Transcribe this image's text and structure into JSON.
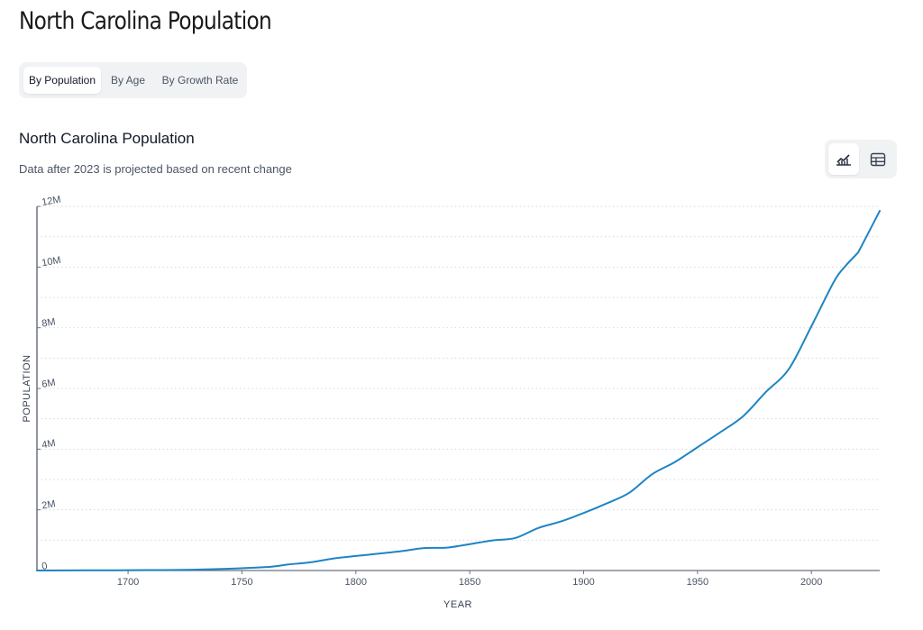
{
  "page": {
    "title": "North Carolina Population"
  },
  "tabs": [
    {
      "label": "By Population",
      "active": true
    },
    {
      "label": "By Age",
      "active": false
    },
    {
      "label": "By Growth Rate",
      "active": false
    }
  ],
  "view_toggle": {
    "chart_icon": "line-chart-icon",
    "table_icon": "table-icon",
    "active": "chart"
  },
  "colors": {
    "line": "#1f84c4",
    "grid": "#d6d9de",
    "axis": "#6b7280"
  },
  "chart_data": {
    "type": "line",
    "title": "North Carolina Population",
    "subtitle": "Data after 2023 is projected based on recent change",
    "xlabel": "YEAR",
    "ylabel": "POPULATION",
    "xlim": [
      1660,
      2030
    ],
    "ylim": [
      0,
      12000000
    ],
    "x_ticks": [
      1700,
      1750,
      1800,
      1850,
      1900,
      1950,
      2000
    ],
    "y_ticks": [
      {
        "value": 0,
        "label": "0"
      },
      {
        "value": 2000000,
        "label": "2M"
      },
      {
        "value": 4000000,
        "label": "4M"
      },
      {
        "value": 6000000,
        "label": "6M"
      },
      {
        "value": 8000000,
        "label": "8M"
      },
      {
        "value": 10000000,
        "label": "10M"
      },
      {
        "value": 12000000,
        "label": "12M"
      }
    ],
    "series": [
      {
        "name": "Population",
        "x": [
          1660,
          1700,
          1730,
          1760,
          1770,
          1780,
          1790,
          1800,
          1810,
          1820,
          1830,
          1840,
          1850,
          1860,
          1870,
          1880,
          1890,
          1900,
          1910,
          1920,
          1930,
          1940,
          1950,
          1960,
          1970,
          1980,
          1990,
          2000,
          2010,
          2015,
          2020,
          2021,
          2023,
          2030
        ],
        "values": [
          1000,
          10700,
          30000,
          110000,
          197000,
          270000,
          393751,
          478103,
          555500,
          638829,
          737987,
          753419,
          869039,
          992622,
          1071361,
          1399750,
          1617949,
          1893810,
          2206287,
          2559123,
          3170276,
          3571623,
          4061929,
          4556155,
          5082059,
          5881766,
          6628637,
          8049313,
          9535483,
          10040000,
          10439388,
          10551162,
          10835491,
          11850000
        ]
      }
    ]
  }
}
